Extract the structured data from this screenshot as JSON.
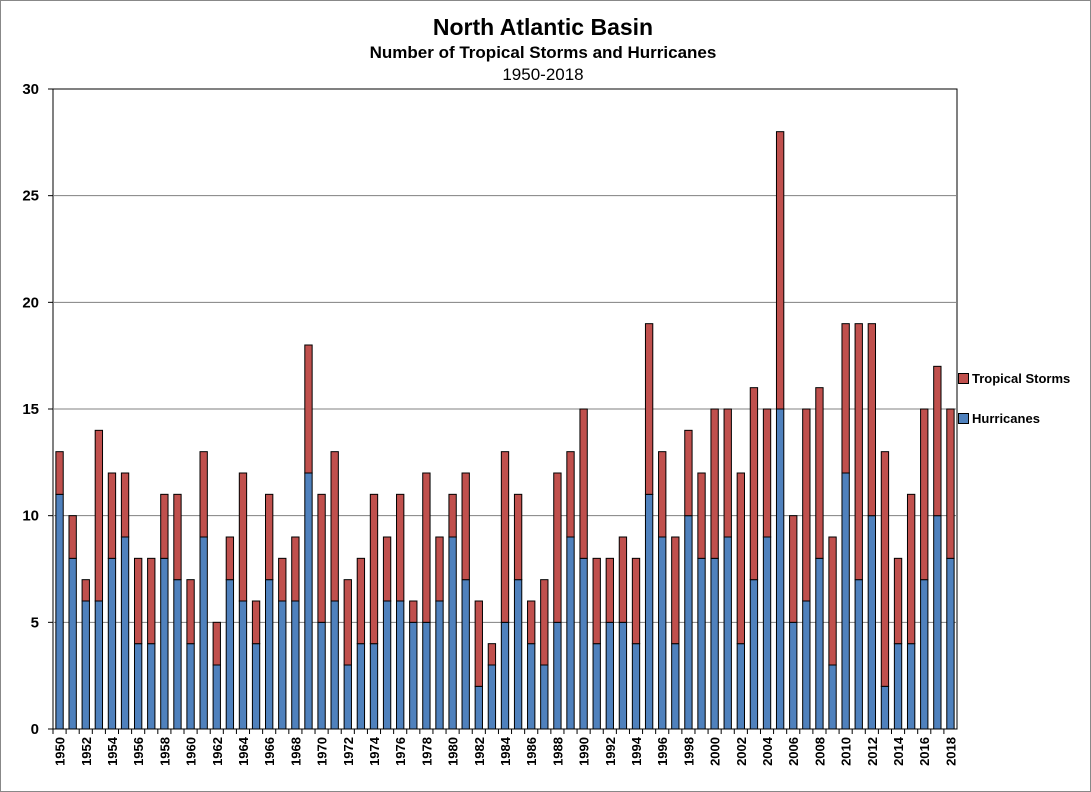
{
  "chart_data": {
    "type": "bar",
    "stacked": true,
    "title": "North Atlantic Basin",
    "subtitle": "Number of Tropical Storms and Hurricanes",
    "subtitle2": "1950-2018",
    "xlabel": "",
    "ylabel": "",
    "ylim": [
      0,
      30
    ],
    "yticks": [
      0,
      5,
      10,
      15,
      20,
      25,
      30
    ],
    "grid": true,
    "legend_position": "right",
    "categories": [
      "1950",
      "1951",
      "1952",
      "1953",
      "1954",
      "1955",
      "1956",
      "1957",
      "1958",
      "1959",
      "1960",
      "1961",
      "1962",
      "1963",
      "1964",
      "1965",
      "1966",
      "1967",
      "1968",
      "1969",
      "1970",
      "1971",
      "1972",
      "1973",
      "1974",
      "1975",
      "1976",
      "1977",
      "1978",
      "1979",
      "1980",
      "1981",
      "1982",
      "1983",
      "1984",
      "1985",
      "1986",
      "1987",
      "1988",
      "1989",
      "1990",
      "1991",
      "1992",
      "1993",
      "1994",
      "1995",
      "1996",
      "1997",
      "1998",
      "1999",
      "2000",
      "2001",
      "2002",
      "2003",
      "2004",
      "2005",
      "2006",
      "2007",
      "2008",
      "2009",
      "2010",
      "2011",
      "2012",
      "2013",
      "2014",
      "2015",
      "2016",
      "2017",
      "2018"
    ],
    "xtick_labels": [
      "1950",
      "1952",
      "1954",
      "1956",
      "1958",
      "1960",
      "1962",
      "1964",
      "1966",
      "1968",
      "1970",
      "1972",
      "1974",
      "1976",
      "1978",
      "1980",
      "1982",
      "1984",
      "1986",
      "1988",
      "1990",
      "1992",
      "1994",
      "1996",
      "1998",
      "2000",
      "2002",
      "2004",
      "2006",
      "2008",
      "2010",
      "2012",
      "2014",
      "2016",
      "2018"
    ],
    "series": [
      {
        "name": "Hurricanes",
        "color": "#4F81BD",
        "values": [
          11,
          8,
          6,
          6,
          8,
          9,
          4,
          4,
          8,
          7,
          4,
          9,
          3,
          7,
          6,
          4,
          7,
          6,
          6,
          12,
          5,
          6,
          3,
          4,
          4,
          6,
          6,
          5,
          5,
          6,
          9,
          7,
          2,
          3,
          5,
          7,
          4,
          3,
          5,
          9,
          8,
          4,
          5,
          5,
          4,
          11,
          9,
          4,
          10,
          8,
          8,
          9,
          4,
          7,
          9,
          15,
          5,
          6,
          8,
          3,
          12,
          7,
          10,
          2,
          4,
          4,
          7,
          10,
          8
        ]
      },
      {
        "name": "Tropical Storms",
        "color": "#C0504D",
        "values": [
          2,
          2,
          1,
          8,
          4,
          3,
          4,
          4,
          3,
          4,
          3,
          4,
          2,
          2,
          6,
          2,
          4,
          2,
          3,
          6,
          6,
          7,
          4,
          4,
          7,
          3,
          5,
          1,
          7,
          3,
          2,
          5,
          4,
          1,
          8,
          4,
          2,
          4,
          7,
          4,
          7,
          4,
          3,
          4,
          4,
          8,
          4,
          5,
          4,
          4,
          7,
          6,
          8,
          9,
          6,
          13,
          5,
          9,
          8,
          6,
          7,
          12,
          9,
          11,
          4,
          7,
          8,
          7,
          7
        ]
      }
    ]
  }
}
